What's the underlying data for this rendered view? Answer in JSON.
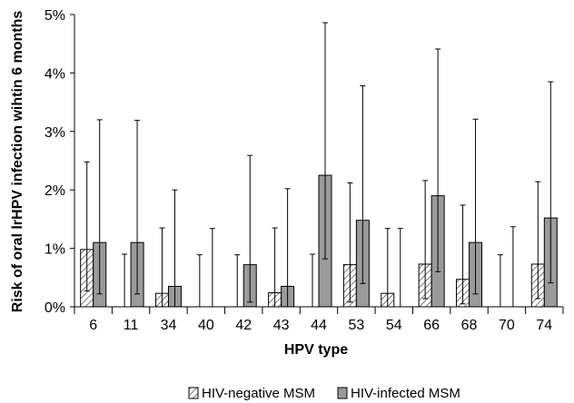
{
  "chart_data": {
    "type": "bar",
    "title": "",
    "xlabel": "HPV type",
    "ylabel": "Risk of oral lrHPV infection wihtin 6 months",
    "categories": [
      "6",
      "11",
      "34",
      "40",
      "42",
      "43",
      "44",
      "53",
      "54",
      "66",
      "68",
      "70",
      "74"
    ],
    "ylim": [
      0,
      5
    ],
    "yticks": [
      "0%",
      "1%",
      "2%",
      "3%",
      "4%",
      "5%"
    ],
    "grid": false,
    "legend_position": "bottom",
    "series": [
      {
        "name": "HIV-negative MSM",
        "fill": "hatched",
        "color": "#b0b0b0",
        "values": [
          0.98,
          0,
          0.23,
          0,
          0,
          0.24,
          0,
          0.72,
          0.23,
          0.73,
          0.47,
          0,
          0.73
        ],
        "ci_lower": [
          0.27,
          0,
          0,
          0,
          0,
          0,
          0,
          0.08,
          0,
          0.14,
          0.05,
          0,
          0.14
        ],
        "ci_upper": [
          2.48,
          0.9,
          1.35,
          0.89,
          0.89,
          1.35,
          0.9,
          2.12,
          1.34,
          2.16,
          1.74,
          0.89,
          2.14
        ]
      },
      {
        "name": "HIV-infected MSM",
        "fill": "solid",
        "color": "#9a9a9a",
        "values": [
          1.1,
          1.1,
          0.35,
          0,
          0.72,
          0.35,
          2.25,
          1.48,
          0,
          1.9,
          1.1,
          0,
          1.52
        ],
        "ci_lower": [
          0.22,
          0.22,
          0,
          0,
          0.08,
          0,
          0.82,
          0.4,
          0,
          0.6,
          0.22,
          0,
          0.41
        ],
        "ci_upper": [
          3.2,
          3.19,
          2.0,
          1.34,
          2.59,
          2.02,
          4.86,
          3.78,
          1.34,
          4.41,
          3.21,
          1.37,
          3.85
        ]
      }
    ]
  }
}
